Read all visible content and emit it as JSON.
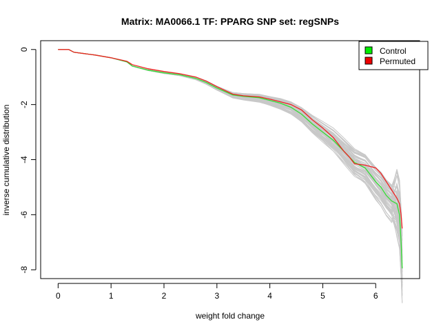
{
  "chart_data": {
    "type": "line",
    "title": "Matrix: MA0066.1 TF: PPARG SNP set: regSNPs",
    "xlabel": "weight fold change",
    "ylabel": "inverse cumulative distribution",
    "xlim": [
      -0.33,
      6.83
    ],
    "ylim": [
      -8.32,
      0.32
    ],
    "xticks": [
      0,
      1,
      2,
      3,
      4,
      5,
      6
    ],
    "yticks": [
      0,
      -2,
      -4,
      -6,
      -8
    ],
    "grid": false,
    "legend_position": "top-right",
    "legend": [
      {
        "label": "Control",
        "color": "#00ee00"
      },
      {
        "label": "Permuted",
        "color": "#ee0000"
      }
    ],
    "series": [
      {
        "name": "Control",
        "color": "#33dd33",
        "x": [
          0,
          0.2,
          0.3,
          0.5,
          0.7,
          1.0,
          1.3,
          1.4,
          1.7,
          2.0,
          2.3,
          2.6,
          2.8,
          3.0,
          3.3,
          3.5,
          3.8,
          4.0,
          4.2,
          4.4,
          4.6,
          4.8,
          5.0,
          5.2,
          5.4,
          5.5,
          5.6,
          5.8,
          6.0,
          6.1,
          6.2,
          6.3,
          6.4,
          6.45,
          6.48,
          6.5
        ],
        "y": [
          0,
          0,
          -0.1,
          -0.15,
          -0.2,
          -0.3,
          -0.45,
          -0.6,
          -0.75,
          -0.85,
          -0.92,
          -1.05,
          -1.2,
          -1.4,
          -1.65,
          -1.7,
          -1.75,
          -1.85,
          -1.95,
          -2.1,
          -2.35,
          -2.7,
          -3.0,
          -3.3,
          -3.7,
          -3.9,
          -4.1,
          -4.3,
          -4.8,
          -5.0,
          -5.3,
          -5.5,
          -5.6,
          -6.0,
          -7.0,
          -7.95
        ]
      },
      {
        "name": "Permuted",
        "color": "#ee2222",
        "x": [
          0,
          0.2,
          0.3,
          0.5,
          0.7,
          1.0,
          1.3,
          1.4,
          1.7,
          2.0,
          2.3,
          2.6,
          2.8,
          3.0,
          3.3,
          3.5,
          3.8,
          4.0,
          4.2,
          4.4,
          4.6,
          4.8,
          5.0,
          5.2,
          5.4,
          5.5,
          5.6,
          5.8,
          6.0,
          6.1,
          6.2,
          6.3,
          6.4,
          6.45,
          6.48,
          6.5
        ],
        "y": [
          0,
          0,
          -0.1,
          -0.15,
          -0.2,
          -0.3,
          -0.43,
          -0.55,
          -0.7,
          -0.8,
          -0.88,
          -1.0,
          -1.15,
          -1.35,
          -1.62,
          -1.68,
          -1.72,
          -1.8,
          -1.9,
          -2.0,
          -2.2,
          -2.55,
          -2.85,
          -3.2,
          -3.7,
          -3.9,
          -4.15,
          -4.2,
          -4.3,
          -4.5,
          -4.8,
          -5.1,
          -5.4,
          -5.6,
          -6.0,
          -6.5
        ]
      }
    ],
    "background_series_color": "#c8c8c8",
    "background_series_count": 60
  }
}
